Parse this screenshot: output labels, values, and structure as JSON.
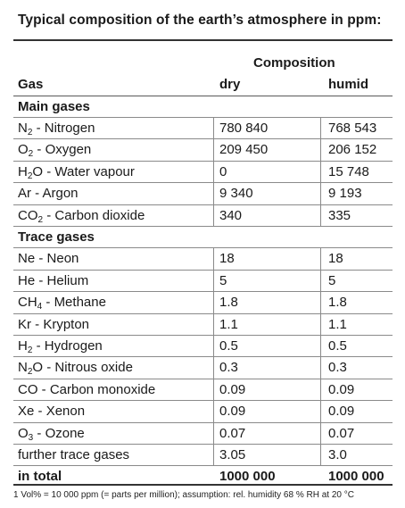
{
  "title": "Typical composition of the earth’s atmosphere in ppm:",
  "header": {
    "composition": "Composition",
    "gas": "Gas",
    "dry": "dry",
    "humid": "humid"
  },
  "sections": {
    "main": "Main gases",
    "trace": "Trace gases"
  },
  "main_gases": [
    {
      "sym": "N",
      "sub": "2",
      "name": " - Nitrogen",
      "dry": "780 840",
      "humid": "768 543"
    },
    {
      "sym": "O",
      "sub": "2",
      "name": " - Oxygen",
      "dry": "209 450",
      "humid": "206 152"
    },
    {
      "sym": "H",
      "sub": "2",
      "name": "O - Water vapour",
      "dry": "0",
      "humid": "15 748"
    },
    {
      "sym": "Ar",
      "sub": "",
      "name": " - Argon",
      "dry": "9 340",
      "humid": "9 193"
    },
    {
      "sym": "CO",
      "sub": "2",
      "name": " - Carbon dioxide",
      "dry": "340",
      "humid": "335"
    }
  ],
  "trace_gases": [
    {
      "sym": "Ne",
      "sub": "",
      "name": " - Neon",
      "dry": "18",
      "humid": "18"
    },
    {
      "sym": "He",
      "sub": "",
      "name": " - Helium",
      "dry": "5",
      "humid": "5"
    },
    {
      "sym": "CH",
      "sub": "4",
      "name": " - Methane",
      "dry": "1.8",
      "humid": "1.8"
    },
    {
      "sym": "Kr",
      "sub": "",
      "name": " - Krypton",
      "dry": "1.1",
      "humid": "1.1"
    },
    {
      "sym": "H",
      "sub": "2",
      "name": " - Hydrogen",
      "dry": "0.5",
      "humid": "0.5"
    },
    {
      "sym": "N",
      "sub": "2",
      "name": "O - Nitrous oxide",
      "dry": "0.3",
      "humid": "0.3"
    },
    {
      "sym": "CO",
      "sub": "",
      "name": " - Carbon monoxide",
      "dry": "0.09",
      "humid": "0.09"
    },
    {
      "sym": "Xe",
      "sub": "",
      "name": " - Xenon",
      "dry": "0.09",
      "humid": "0.09"
    },
    {
      "sym": "O",
      "sub": "3",
      "name": " - Ozone",
      "dry": "0.07",
      "humid": "0.07"
    },
    {
      "sym": "further trace gases",
      "sub": "",
      "name": "",
      "dry": "3.05",
      "humid": "3.0"
    }
  ],
  "total": {
    "label": "in total",
    "dry": "1000 000",
    "humid": "1000 000"
  },
  "footnote": "1 Vol% = 10 000 ppm (= parts per million); assumption: rel. humidity 68 % RH at 20 °C"
}
